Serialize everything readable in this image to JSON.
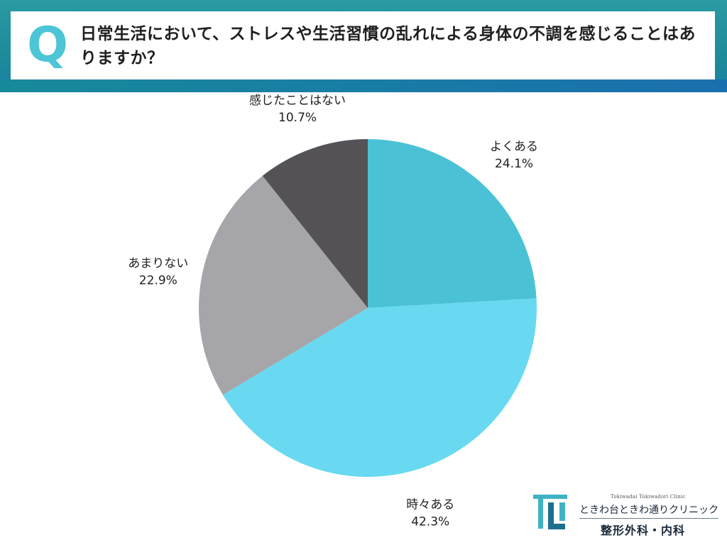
{
  "question": {
    "letter": "Q",
    "text": "日常生活において、ストレスや生活習慣の乱れによる身体の不調を感じることはありますか？"
  },
  "chart_data": {
    "type": "pie",
    "slices": [
      {
        "label": "よくある",
        "value": 24.1,
        "value_label": "24.1%",
        "color": "#4bc1d6"
      },
      {
        "label": "時々ある",
        "value": 42.3,
        "value_label": "42.3%",
        "color": "#68d9f0"
      },
      {
        "label": "あまりない",
        "value": 22.9,
        "value_label": "22.9%",
        "color": "#a6a5a9"
      },
      {
        "label": "感じたことはない",
        "value": 10.7,
        "value_label": "10.7%",
        "color": "#545257"
      }
    ],
    "start": "12 o'clock",
    "direction": "clockwise"
  },
  "logo": {
    "sub": "Tokiwadai Tokiwadori Clinic",
    "name": "ときわ台ときわ通りクリニック",
    "dept": "整形外科・内科"
  }
}
